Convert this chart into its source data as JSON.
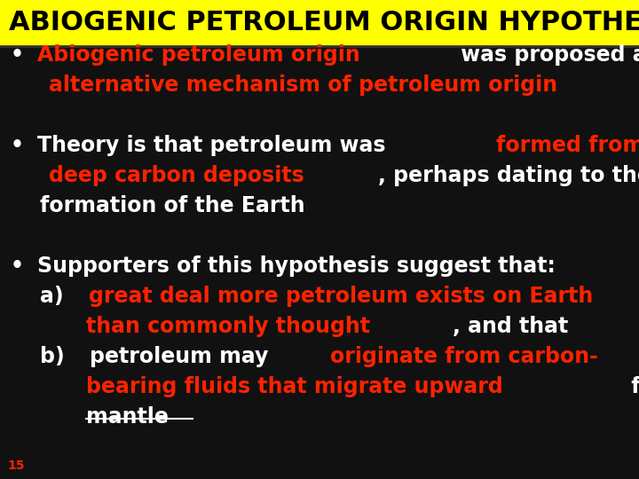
{
  "title": "ABIOGENIC PETROLEUM ORIGIN HYPOTHESIS",
  "title_bg": "#FFFF00",
  "title_color": "#000000",
  "body_bg": "#111111",
  "slide_number": "15",
  "lines": [
    {
      "segments": [
        {
          "text": "• ",
          "color": "#FFFFFF",
          "bold": true,
          "size": 17
        },
        {
          "text": "Abiogenic petroleum origin",
          "color": "#FF2200",
          "bold": true,
          "size": 17
        },
        {
          "text": " was proposed as an ",
          "color": "#FFFFFF",
          "bold": true,
          "size": 17
        }
      ]
    },
    {
      "segments": [
        {
          "text": "    ",
          "color": "#FFFFFF",
          "bold": true,
          "size": 17
        },
        {
          "text": "alternative mechanism of petroleum origin",
          "color": "#FF2200",
          "bold": true,
          "size": 17
        }
      ]
    },
    {
      "segments": [
        {
          "text": "",
          "color": "#FFFFFF",
          "bold": true,
          "size": 17
        }
      ]
    },
    {
      "segments": [
        {
          "text": "• ",
          "color": "#FFFFFF",
          "bold": true,
          "size": 17
        },
        {
          "text": "Theory is that petroleum was ",
          "color": "#FFFFFF",
          "bold": true,
          "size": 17
        },
        {
          "text": "formed from",
          "color": "#FF2200",
          "bold": true,
          "size": 17
        }
      ]
    },
    {
      "segments": [
        {
          "text": "    ",
          "color": "#FFFFFF",
          "bold": true,
          "size": 17
        },
        {
          "text": "deep carbon deposits",
          "color": "#FF2200",
          "bold": true,
          "size": 17
        },
        {
          "text": ", perhaps dating to the",
          "color": "#FFFFFF",
          "bold": true,
          "size": 17
        }
      ]
    },
    {
      "segments": [
        {
          "text": "    formation of the Earth",
          "color": "#FFFFFF",
          "bold": true,
          "size": 17
        }
      ]
    },
    {
      "segments": [
        {
          "text": "",
          "color": "#FFFFFF",
          "bold": true,
          "size": 17
        }
      ]
    },
    {
      "segments": [
        {
          "text": "• ",
          "color": "#FFFFFF",
          "bold": true,
          "size": 17
        },
        {
          "text": "Supporters of this hypothesis suggest that:",
          "color": "#FFFFFF",
          "bold": true,
          "size": 17
        }
      ]
    },
    {
      "segments": [
        {
          "text": "    a) ",
          "color": "#FFFFFF",
          "bold": true,
          "size": 17
        },
        {
          "text": "great deal more petroleum exists on Earth",
          "color": "#FF2200",
          "bold": true,
          "size": 17
        }
      ]
    },
    {
      "segments": [
        {
          "text": "        ",
          "color": "#FFFFFF",
          "bold": true,
          "size": 17
        },
        {
          "text": "than commonly thought",
          "color": "#FF2200",
          "bold": true,
          "size": 17
        },
        {
          "text": ", and that",
          "color": "#FFFFFF",
          "bold": true,
          "size": 17
        }
      ]
    },
    {
      "segments": [
        {
          "text": "    b) ",
          "color": "#FFFFFF",
          "bold": true,
          "size": 17
        },
        {
          "text": "petroleum may ",
          "color": "#FFFFFF",
          "bold": true,
          "size": 17
        },
        {
          "text": "originate from carbon-",
          "color": "#FF2200",
          "bold": true,
          "size": 17
        }
      ]
    },
    {
      "segments": [
        {
          "text": "        ",
          "color": "#FFFFFF",
          "bold": true,
          "size": 17
        },
        {
          "text": "bearing fluids that migrate upward",
          "color": "#FF2200",
          "bold": true,
          "size": 17
        },
        {
          "text": " from the",
          "color": "#FFFFFF",
          "bold": true,
          "size": 17
        }
      ]
    },
    {
      "segments": [
        {
          "text": "        ",
          "color": "#FFFFFF",
          "bold": true,
          "size": 17
        },
        {
          "text": "mantle",
          "color": "#FFFFFF",
          "bold": true,
          "size": 17,
          "underline": true
        }
      ]
    }
  ]
}
